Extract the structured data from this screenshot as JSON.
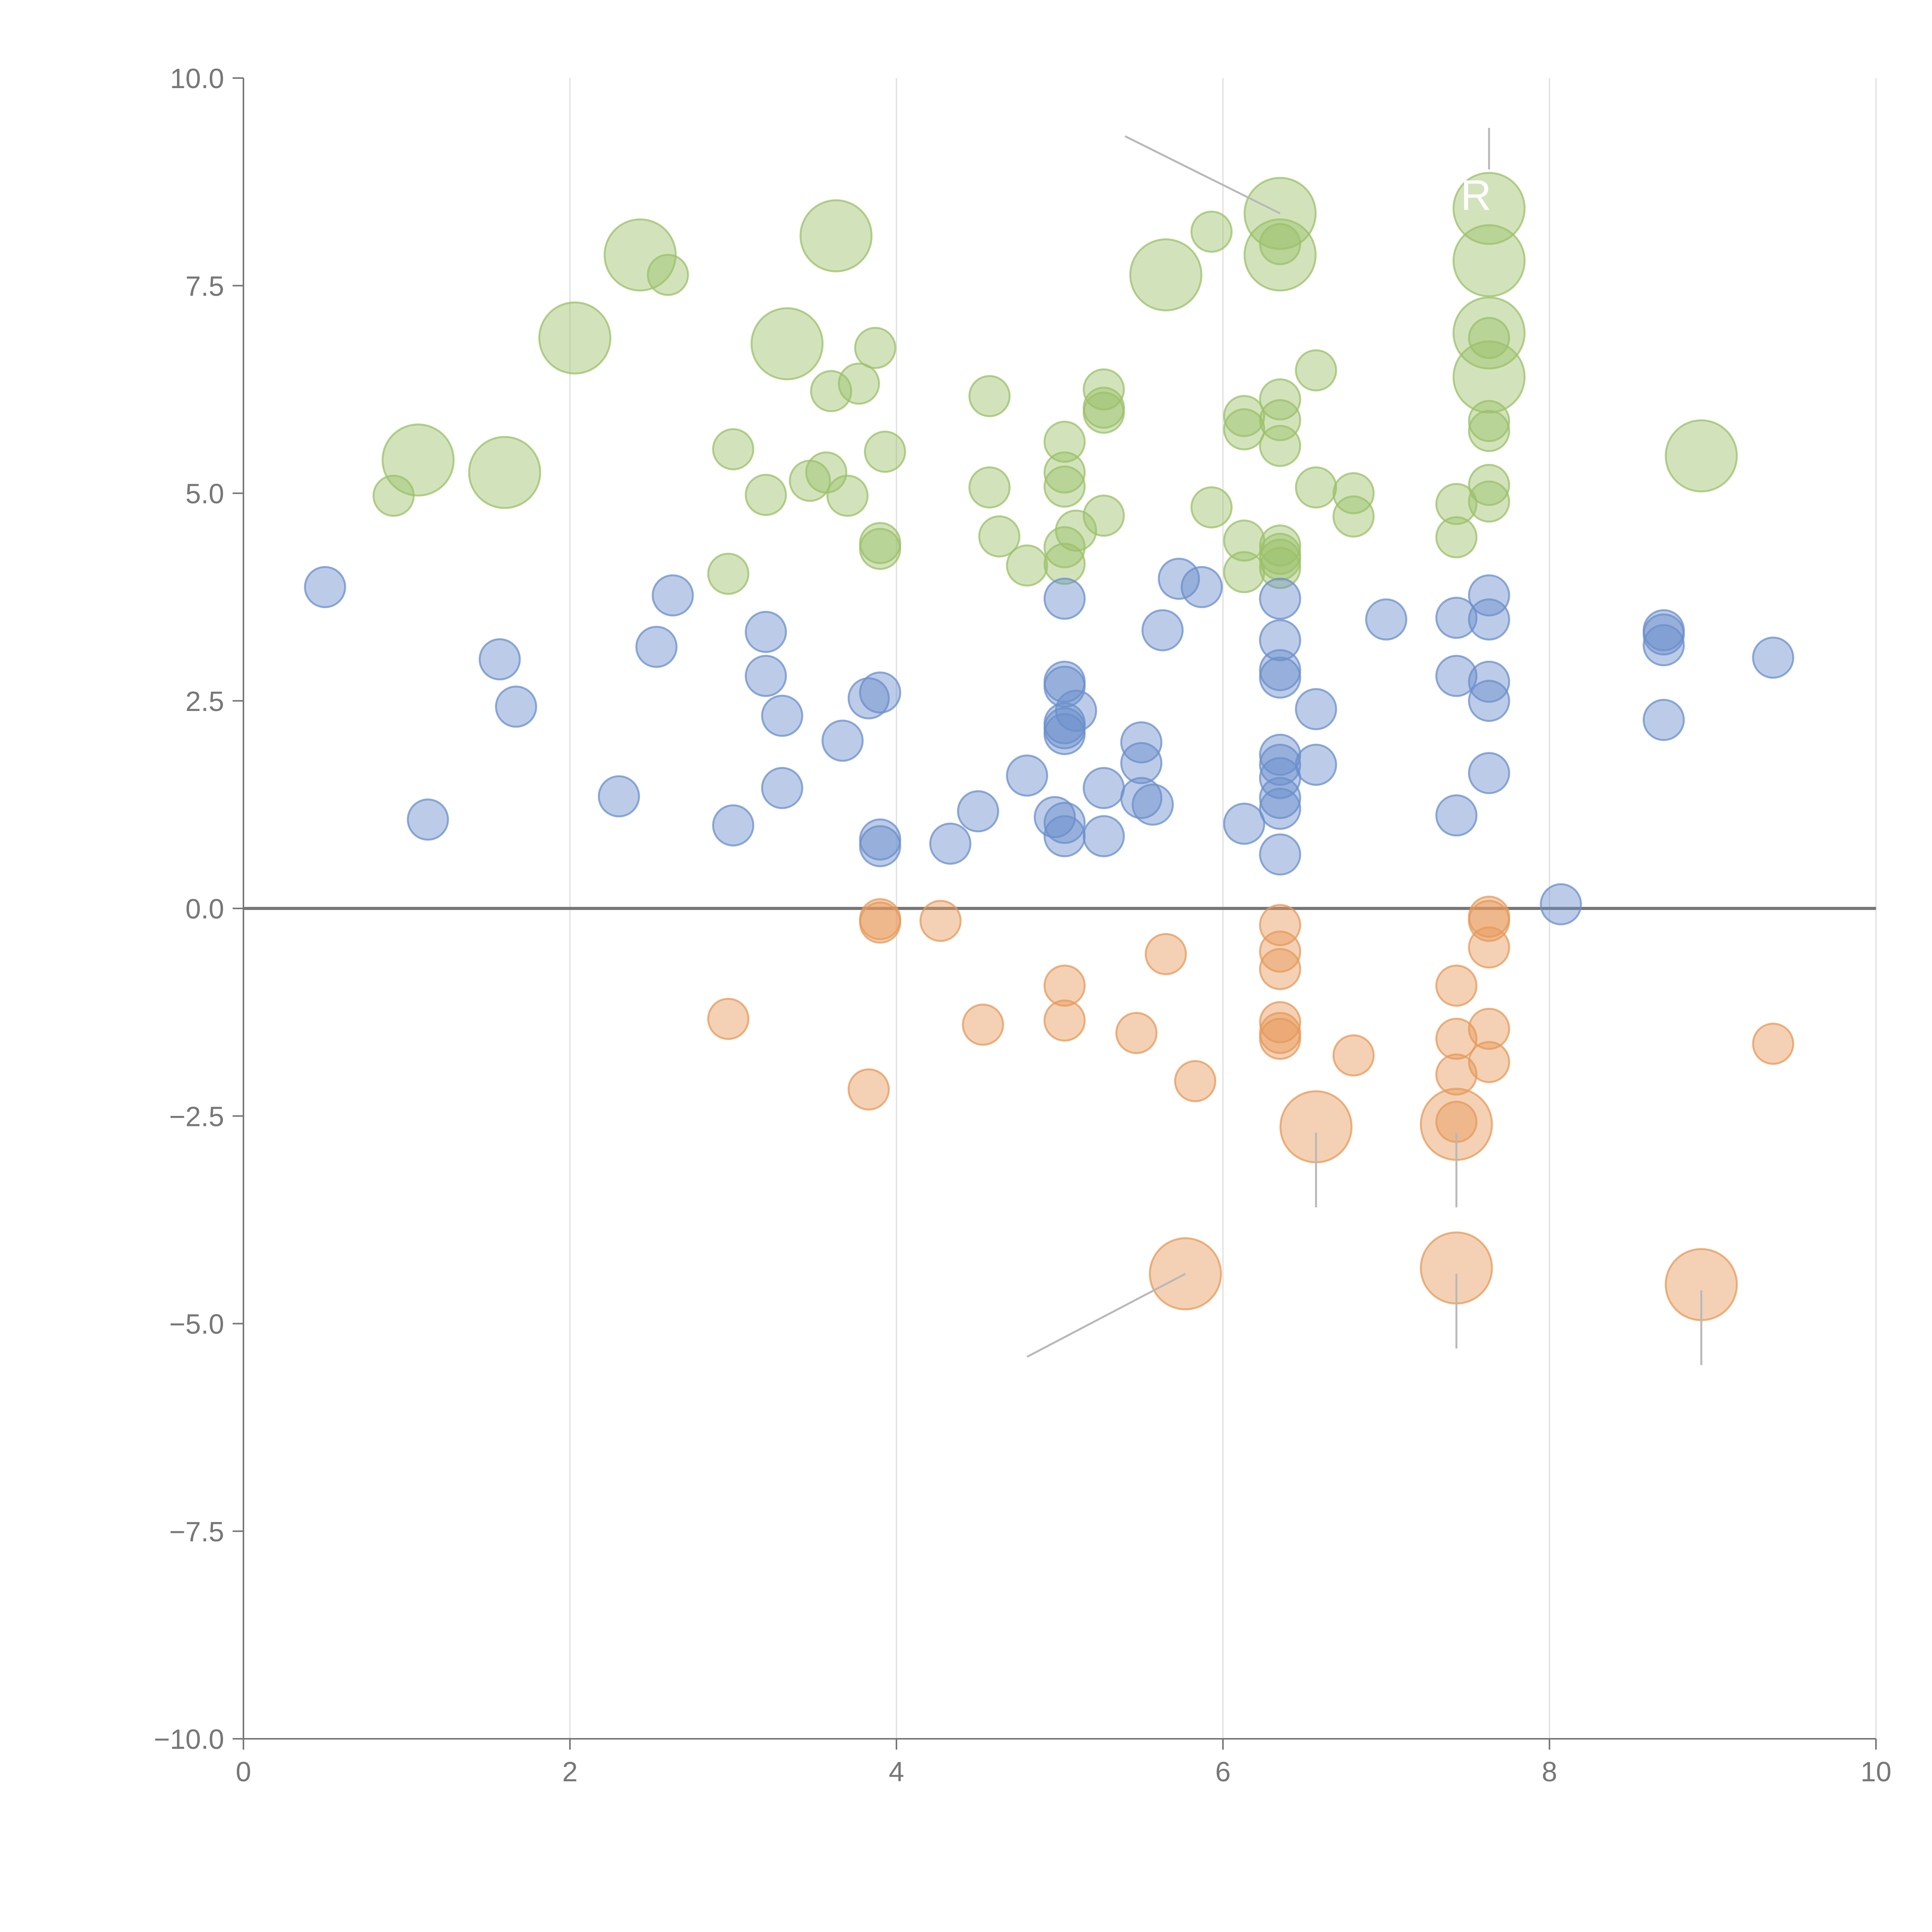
{
  "chart_data": {
    "type": "scatter",
    "title": "",
    "xlabel": "",
    "ylabel": "",
    "xlim": [
      0,
      10
    ],
    "ylim": [
      -10,
      10
    ],
    "grid": "vertical",
    "x_ticks": [
      0,
      2,
      4,
      6,
      8,
      10
    ],
    "x_tick_labels": [
      "0",
      "2",
      "4",
      "6",
      "8",
      "10"
    ],
    "y_ticks": [
      10,
      7.5,
      5,
      2.5,
      0,
      -2.5,
      -5,
      -7.5,
      -10
    ],
    "y_tick_labels": [
      "10.0",
      "7.5",
      "5.0",
      "2.5",
      "0.0",
      "−2.5",
      "−5.0",
      "−7.5",
      "−10.0"
    ],
    "colors": {
      "green": "#9cc06a",
      "blue": "#6b8fcb",
      "orange": "#e69a5a",
      "axis": "#777777",
      "grid": "#dddddd",
      "leader": "#b8b8b8"
    },
    "series": [
      {
        "name": "green",
        "color": "#9cc06a",
        "points": [
          {
            "x": 0.92,
            "y": 4.97,
            "size": 1
          },
          {
            "x": 1.07,
            "y": 5.4,
            "size": 3
          },
          {
            "x": 1.6,
            "y": 5.25,
            "size": 3
          },
          {
            "x": 2.03,
            "y": 6.87,
            "size": 3
          },
          {
            "x": 2.43,
            "y": 7.87,
            "size": 3
          },
          {
            "x": 2.6,
            "y": 7.63,
            "size": 1
          },
          {
            "x": 2.97,
            "y": 4.03,
            "size": 1
          },
          {
            "x": 3.0,
            "y": 5.53,
            "size": 1
          },
          {
            "x": 3.2,
            "y": 4.98,
            "size": 1
          },
          {
            "x": 3.33,
            "y": 6.8,
            "size": 3
          },
          {
            "x": 3.47,
            "y": 5.15,
            "size": 1
          },
          {
            "x": 3.57,
            "y": 5.25,
            "size": 1
          },
          {
            "x": 3.6,
            "y": 6.23,
            "size": 1
          },
          {
            "x": 3.63,
            "y": 8.1,
            "size": 3
          },
          {
            "x": 3.7,
            "y": 4.97,
            "size": 1
          },
          {
            "x": 3.77,
            "y": 6.32,
            "size": 1
          },
          {
            "x": 3.87,
            "y": 6.75,
            "size": 1
          },
          {
            "x": 3.9,
            "y": 4.4,
            "size": 1
          },
          {
            "x": 3.9,
            "y": 4.33,
            "size": 1
          },
          {
            "x": 3.93,
            "y": 5.5,
            "size": 1
          },
          {
            "x": 4.57,
            "y": 6.17,
            "size": 1
          },
          {
            "x": 4.57,
            "y": 5.07,
            "size": 1
          },
          {
            "x": 4.63,
            "y": 4.48,
            "size": 1
          },
          {
            "x": 4.8,
            "y": 4.13,
            "size": 1
          },
          {
            "x": 5.03,
            "y": 5.62,
            "size": 1
          },
          {
            "x": 5.03,
            "y": 5.25,
            "size": 1
          },
          {
            "x": 5.03,
            "y": 5.08,
            "size": 1
          },
          {
            "x": 5.03,
            "y": 4.35,
            "size": 1
          },
          {
            "x": 5.03,
            "y": 4.15,
            "size": 1
          },
          {
            "x": 5.1,
            "y": 4.55,
            "size": 1
          },
          {
            "x": 5.27,
            "y": 6.25,
            "size": 1
          },
          {
            "x": 5.27,
            "y": 6.03,
            "size": 1
          },
          {
            "x": 5.27,
            "y": 5.97,
            "size": 1
          },
          {
            "x": 5.27,
            "y": 4.73,
            "size": 1
          },
          {
            "x": 5.65,
            "y": 7.63,
            "size": 3
          },
          {
            "x": 5.93,
            "y": 8.15,
            "size": 1
          },
          {
            "x": 5.93,
            "y": 4.83,
            "size": 1
          },
          {
            "x": 6.13,
            "y": 5.93,
            "size": 1
          },
          {
            "x": 6.13,
            "y": 5.77,
            "size": 1
          },
          {
            "x": 6.13,
            "y": 4.43,
            "size": 1
          },
          {
            "x": 6.13,
            "y": 4.05,
            "size": 1
          },
          {
            "x": 6.35,
            "y": 8.37,
            "size": 3
          },
          {
            "x": 6.35,
            "y": 8.0,
            "size": 1
          },
          {
            "x": 6.35,
            "y": 7.87,
            "size": 3
          },
          {
            "x": 6.35,
            "y": 6.13,
            "size": 1
          },
          {
            "x": 6.35,
            "y": 5.88,
            "size": 1
          },
          {
            "x": 6.35,
            "y": 5.57,
            "size": 1
          },
          {
            "x": 6.35,
            "y": 4.37,
            "size": 1
          },
          {
            "x": 6.35,
            "y": 4.27,
            "size": 1
          },
          {
            "x": 6.35,
            "y": 4.2,
            "size": 1
          },
          {
            "x": 6.35,
            "y": 4.1,
            "size": 1
          },
          {
            "x": 6.57,
            "y": 6.48,
            "size": 1
          },
          {
            "x": 6.57,
            "y": 5.07,
            "size": 1
          },
          {
            "x": 6.8,
            "y": 5.0,
            "size": 1
          },
          {
            "x": 6.8,
            "y": 4.72,
            "size": 1
          },
          {
            "x": 7.43,
            "y": 4.87,
            "size": 1
          },
          {
            "x": 7.43,
            "y": 4.47,
            "size": 1
          },
          {
            "x": 7.63,
            "y": 8.43,
            "size": 3
          },
          {
            "x": 7.63,
            "y": 7.8,
            "size": 3
          },
          {
            "x": 7.63,
            "y": 6.93,
            "size": 3
          },
          {
            "x": 7.63,
            "y": 6.87,
            "size": 1
          },
          {
            "x": 7.63,
            "y": 6.4,
            "size": 3
          },
          {
            "x": 7.63,
            "y": 5.87,
            "size": 1
          },
          {
            "x": 7.63,
            "y": 5.75,
            "size": 1
          },
          {
            "x": 7.63,
            "y": 5.1,
            "size": 1
          },
          {
            "x": 7.63,
            "y": 4.9,
            "size": 1
          },
          {
            "x": 8.93,
            "y": 5.45,
            "size": 3
          }
        ]
      },
      {
        "name": "blue",
        "color": "#6b8fcb",
        "points": [
          {
            "x": 0.5,
            "y": 3.87,
            "size": 1
          },
          {
            "x": 1.13,
            "y": 1.07,
            "size": 1
          },
          {
            "x": 1.57,
            "y": 3.0,
            "size": 1
          },
          {
            "x": 1.67,
            "y": 2.43,
            "size": 1
          },
          {
            "x": 2.3,
            "y": 1.35,
            "size": 1
          },
          {
            "x": 2.53,
            "y": 3.15,
            "size": 1
          },
          {
            "x": 2.63,
            "y": 3.77,
            "size": 1
          },
          {
            "x": 3.0,
            "y": 1.0,
            "size": 1
          },
          {
            "x": 3.2,
            "y": 3.33,
            "size": 1
          },
          {
            "x": 3.2,
            "y": 2.8,
            "size": 1
          },
          {
            "x": 3.3,
            "y": 2.32,
            "size": 1
          },
          {
            "x": 3.3,
            "y": 1.45,
            "size": 1
          },
          {
            "x": 3.67,
            "y": 2.02,
            "size": 1
          },
          {
            "x": 3.83,
            "y": 2.53,
            "size": 1
          },
          {
            "x": 3.9,
            "y": 2.6,
            "size": 1
          },
          {
            "x": 3.9,
            "y": 0.83,
            "size": 1
          },
          {
            "x": 3.9,
            "y": 0.75,
            "size": 1
          },
          {
            "x": 4.33,
            "y": 0.78,
            "size": 1
          },
          {
            "x": 4.5,
            "y": 1.17,
            "size": 1
          },
          {
            "x": 4.8,
            "y": 1.6,
            "size": 1
          },
          {
            "x": 4.97,
            "y": 1.1,
            "size": 1
          },
          {
            "x": 5.03,
            "y": 3.73,
            "size": 1
          },
          {
            "x": 5.03,
            "y": 2.73,
            "size": 1
          },
          {
            "x": 5.03,
            "y": 2.67,
            "size": 1
          },
          {
            "x": 5.03,
            "y": 2.23,
            "size": 1
          },
          {
            "x": 5.03,
            "y": 2.17,
            "size": 1
          },
          {
            "x": 5.03,
            "y": 2.1,
            "size": 1
          },
          {
            "x": 5.03,
            "y": 1.03,
            "size": 1
          },
          {
            "x": 5.03,
            "y": 0.87,
            "size": 1
          },
          {
            "x": 5.1,
            "y": 2.38,
            "size": 1
          },
          {
            "x": 5.27,
            "y": 1.45,
            "size": 1
          },
          {
            "x": 5.27,
            "y": 0.87,
            "size": 1
          },
          {
            "x": 5.5,
            "y": 2.0,
            "size": 1
          },
          {
            "x": 5.5,
            "y": 1.75,
            "size": 1
          },
          {
            "x": 5.5,
            "y": 1.33,
            "size": 1
          },
          {
            "x": 5.57,
            "y": 1.25,
            "size": 1
          },
          {
            "x": 5.63,
            "y": 3.35,
            "size": 1
          },
          {
            "x": 5.73,
            "y": 3.97,
            "size": 1
          },
          {
            "x": 5.87,
            "y": 3.87,
            "size": 1
          },
          {
            "x": 6.13,
            "y": 1.02,
            "size": 1
          },
          {
            "x": 6.35,
            "y": 3.73,
            "size": 1
          },
          {
            "x": 6.35,
            "y": 3.23,
            "size": 1
          },
          {
            "x": 6.35,
            "y": 2.87,
            "size": 1
          },
          {
            "x": 6.35,
            "y": 2.78,
            "size": 1
          },
          {
            "x": 6.35,
            "y": 1.85,
            "size": 1
          },
          {
            "x": 6.35,
            "y": 1.73,
            "size": 1
          },
          {
            "x": 6.35,
            "y": 1.57,
            "size": 1
          },
          {
            "x": 6.35,
            "y": 1.33,
            "size": 1
          },
          {
            "x": 6.35,
            "y": 1.2,
            "size": 1
          },
          {
            "x": 6.35,
            "y": 0.65,
            "size": 1
          },
          {
            "x": 6.57,
            "y": 2.4,
            "size": 1
          },
          {
            "x": 6.57,
            "y": 1.73,
            "size": 1
          },
          {
            "x": 7.0,
            "y": 3.48,
            "size": 1
          },
          {
            "x": 7.43,
            "y": 3.5,
            "size": 1
          },
          {
            "x": 7.43,
            "y": 2.8,
            "size": 1
          },
          {
            "x": 7.43,
            "y": 1.12,
            "size": 1
          },
          {
            "x": 7.63,
            "y": 3.77,
            "size": 1
          },
          {
            "x": 7.63,
            "y": 3.48,
            "size": 1
          },
          {
            "x": 7.63,
            "y": 2.73,
            "size": 1
          },
          {
            "x": 7.63,
            "y": 2.5,
            "size": 1
          },
          {
            "x": 7.63,
            "y": 1.63,
            "size": 1
          },
          {
            "x": 8.07,
            "y": 0.05,
            "size": 1
          },
          {
            "x": 8.7,
            "y": 3.35,
            "size": 1
          },
          {
            "x": 8.7,
            "y": 3.3,
            "size": 1
          },
          {
            "x": 8.7,
            "y": 3.17,
            "size": 1
          },
          {
            "x": 8.7,
            "y": 2.27,
            "size": 1
          },
          {
            "x": 9.37,
            "y": 3.02,
            "size": 1
          }
        ]
      },
      {
        "name": "orange",
        "color": "#e69a5a",
        "points": [
          {
            "x": 2.97,
            "y": -1.33,
            "size": 1
          },
          {
            "x": 3.83,
            "y": -2.18,
            "size": 1
          },
          {
            "x": 3.9,
            "y": -0.13,
            "size": 1
          },
          {
            "x": 3.9,
            "y": -0.17,
            "size": 1
          },
          {
            "x": 4.27,
            "y": -0.15,
            "size": 1
          },
          {
            "x": 4.53,
            "y": -1.4,
            "size": 1
          },
          {
            "x": 5.03,
            "y": -0.93,
            "size": 1
          },
          {
            "x": 5.03,
            "y": -1.35,
            "size": 1
          },
          {
            "x": 5.47,
            "y": -1.5,
            "size": 1
          },
          {
            "x": 5.65,
            "y": -0.55,
            "size": 1
          },
          {
            "x": 5.77,
            "y": -4.4,
            "size": 3
          },
          {
            "x": 5.83,
            "y": -2.08,
            "size": 1
          },
          {
            "x": 6.35,
            "y": -0.2,
            "size": 1
          },
          {
            "x": 6.35,
            "y": -0.52,
            "size": 1
          },
          {
            "x": 6.35,
            "y": -0.73,
            "size": 1
          },
          {
            "x": 6.35,
            "y": -1.37,
            "size": 1
          },
          {
            "x": 6.35,
            "y": -1.5,
            "size": 1
          },
          {
            "x": 6.35,
            "y": -1.57,
            "size": 1
          },
          {
            "x": 6.57,
            "y": -2.63,
            "size": 3
          },
          {
            "x": 6.8,
            "y": -1.77,
            "size": 1
          },
          {
            "x": 7.43,
            "y": -0.93,
            "size": 1
          },
          {
            "x": 7.43,
            "y": -1.57,
            "size": 1
          },
          {
            "x": 7.43,
            "y": -2.0,
            "size": 1
          },
          {
            "x": 7.43,
            "y": -2.6,
            "size": 3
          },
          {
            "x": 7.43,
            "y": -2.57,
            "size": 1
          },
          {
            "x": 7.43,
            "y": -4.33,
            "size": 3
          },
          {
            "x": 7.63,
            "y": -0.1,
            "size": 1
          },
          {
            "x": 7.63,
            "y": -0.15,
            "size": 1
          },
          {
            "x": 7.63,
            "y": -0.47,
            "size": 1
          },
          {
            "x": 7.63,
            "y": -1.45,
            "size": 1
          },
          {
            "x": 7.63,
            "y": -1.85,
            "size": 1
          },
          {
            "x": 8.93,
            "y": -4.53,
            "size": 3
          },
          {
            "x": 9.37,
            "y": -1.63,
            "size": 1
          }
        ]
      }
    ],
    "annotations": [
      {
        "text": "R",
        "x": 7.55,
        "y": 8.6,
        "leader": [
          [
            7.63,
            8.9
          ],
          [
            7.63,
            9.4
          ]
        ],
        "style": "outer"
      },
      {
        "text": "",
        "x": 5.4,
        "y": 9.3,
        "leader": [
          [
            6.35,
            8.37
          ],
          [
            5.4,
            9.3
          ]
        ],
        "style": "outer"
      },
      {
        "text": "",
        "x": 6.57,
        "y": -3.6,
        "leader": [
          [
            6.57,
            -2.7
          ],
          [
            6.57,
            -3.6
          ]
        ],
        "style": "outer"
      },
      {
        "text": "",
        "x": 7.43,
        "y": -3.6,
        "leader": [
          [
            7.43,
            -2.7
          ],
          [
            7.43,
            -3.6
          ]
        ],
        "style": "outer"
      },
      {
        "text": "",
        "x": 7.43,
        "y": -5.3,
        "leader": [
          [
            7.43,
            -4.4
          ],
          [
            7.43,
            -5.3
          ]
        ],
        "style": "outer"
      },
      {
        "text": "",
        "x": 8.93,
        "y": -5.5,
        "leader": [
          [
            8.93,
            -4.6
          ],
          [
            8.93,
            -5.5
          ]
        ],
        "style": "outer"
      },
      {
        "text": "",
        "x": 4.8,
        "y": -5.4,
        "leader": [
          [
            5.77,
            -4.4
          ],
          [
            4.8,
            -5.4
          ]
        ],
        "style": "outer"
      }
    ]
  }
}
